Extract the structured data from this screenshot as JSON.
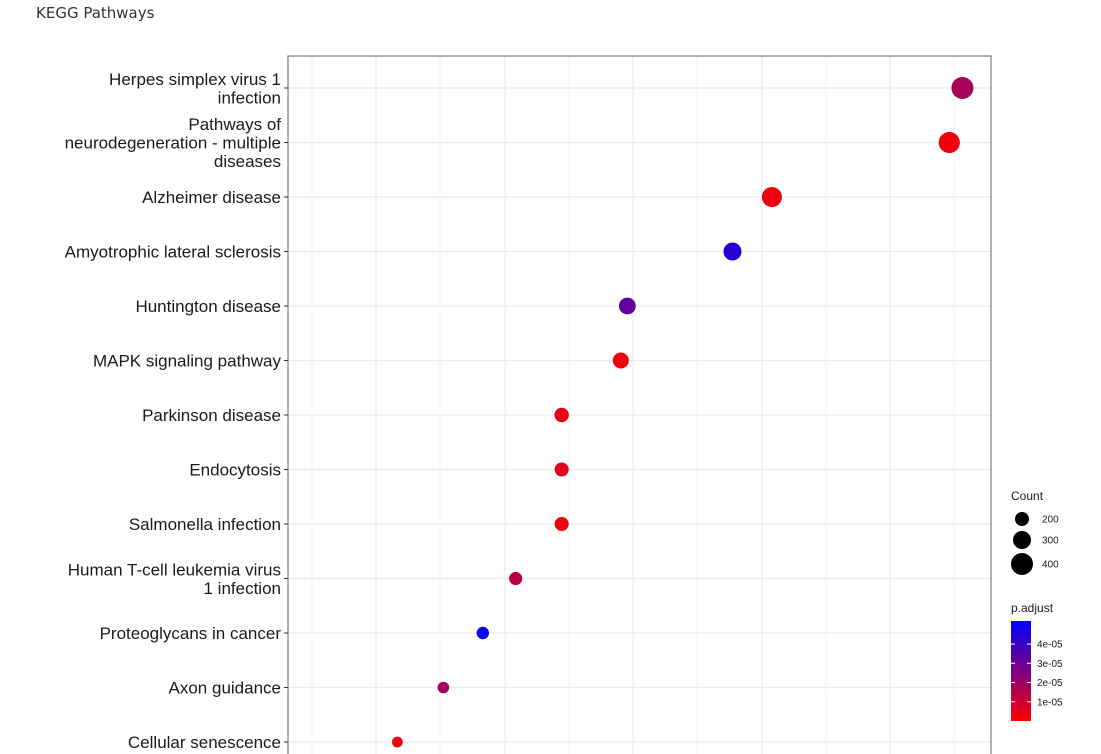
{
  "page": {
    "title": "KEGG Pathways"
  },
  "chart_data": {
    "type": "scatter",
    "title": "KEGG Pathways",
    "xlabel": "",
    "ylabel": "",
    "x_tick_labels_visible": false,
    "x_range_relative": [
      0.0,
      1.0
    ],
    "grid": true,
    "legend_position": "right",
    "categories": [
      "Herpes simplex virus 1 infection",
      "Pathways of neurodegeneration - multiple diseases",
      "Alzheimer disease",
      "Amyotrophic lateral sclerosis",
      "Huntington disease",
      "MAPK signaling pathway",
      "Parkinson disease",
      "Endocytosis",
      "Salmonella infection",
      "Human T-cell leukemia virus 1 infection",
      "Proteoglycans in cancer",
      "Axon guidance",
      "Cellular senescence"
    ],
    "category_lines": [
      [
        "Herpes simplex virus 1",
        "infection"
      ],
      [
        "Pathways of",
        "neurodegeneration - multiple",
        "diseases"
      ],
      [
        "Alzheimer disease"
      ],
      [
        "Amyotrophic lateral sclerosis"
      ],
      [
        "Huntington disease"
      ],
      [
        "MAPK signaling pathway"
      ],
      [
        "Parkinson disease"
      ],
      [
        "Endocytosis"
      ],
      [
        "Salmonella infection"
      ],
      [
        "Human T-cell leukemia virus",
        "1 infection"
      ],
      [
        "Proteoglycans in cancer"
      ],
      [
        "Axon guidance"
      ],
      [
        "Cellular senescence"
      ]
    ],
    "x_relative": [
      0.99,
      0.97,
      0.7,
      0.64,
      0.48,
      0.47,
      0.38,
      0.38,
      0.38,
      0.31,
      0.26,
      0.2,
      0.13
    ],
    "count": [
      450,
      430,
      400,
      350,
      320,
      300,
      260,
      250,
      250,
      230,
      210,
      190,
      170
    ],
    "p_adjust": [
      1.8e-05,
      3e-06,
      3e-06,
      4.4e-05,
      3.2e-05,
      3e-06,
      4e-06,
      6e-06,
      4e-06,
      1.4e-05,
      5e-05,
      2e-05,
      4e-06
    ],
    "size_legend": {
      "title": "Count",
      "values": [
        200,
        300,
        400
      ],
      "labels": [
        "200",
        "300",
        "400"
      ]
    },
    "color_legend": {
      "title": "p.adjust",
      "min": 0.0,
      "max": 5.2e-05,
      "low_color": "#ff0000",
      "high_color": "#0000ff",
      "ticks": [
        4e-05,
        3e-05,
        2e-05,
        1e-05
      ],
      "tick_labels": [
        "4e-05",
        "3e-05",
        "2e-05",
        "1e-05"
      ]
    },
    "colors": {
      "grid": "#ebebeb",
      "panel_border": "#7f7f7f",
      "tick": "#333333"
    }
  }
}
